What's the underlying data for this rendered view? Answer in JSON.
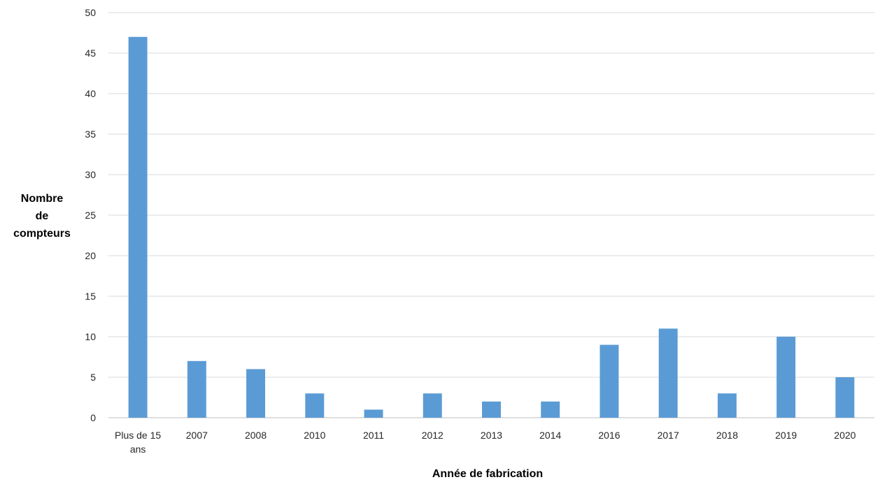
{
  "chart_data": {
    "type": "bar",
    "categories": [
      "Plus de 15 ans",
      "2007",
      "2008",
      "2010",
      "2011",
      "2012",
      "2013",
      "2014",
      "2016",
      "2017",
      "2018",
      "2019",
      "2020"
    ],
    "category_lines": [
      [
        "Plus de 15",
        "ans"
      ],
      [
        "2007"
      ],
      [
        "2008"
      ],
      [
        "2010"
      ],
      [
        "2011"
      ],
      [
        "2012"
      ],
      [
        "2013"
      ],
      [
        "2014"
      ],
      [
        "2016"
      ],
      [
        "2017"
      ],
      [
        "2018"
      ],
      [
        "2019"
      ],
      [
        "2020"
      ]
    ],
    "values": [
      47,
      7,
      6,
      3,
      1,
      3,
      2,
      2,
      9,
      11,
      3,
      10,
      5
    ],
    "xlabel": "Année de fabrication",
    "ylabel_lines": [
      "Nombre",
      "de",
      "compteurs"
    ],
    "ylim": [
      0,
      50
    ],
    "yticks": [
      0,
      5,
      10,
      15,
      20,
      25,
      30,
      35,
      40,
      45,
      50
    ],
    "grid": true,
    "legend": "none",
    "bar_color": "#5b9bd5"
  }
}
